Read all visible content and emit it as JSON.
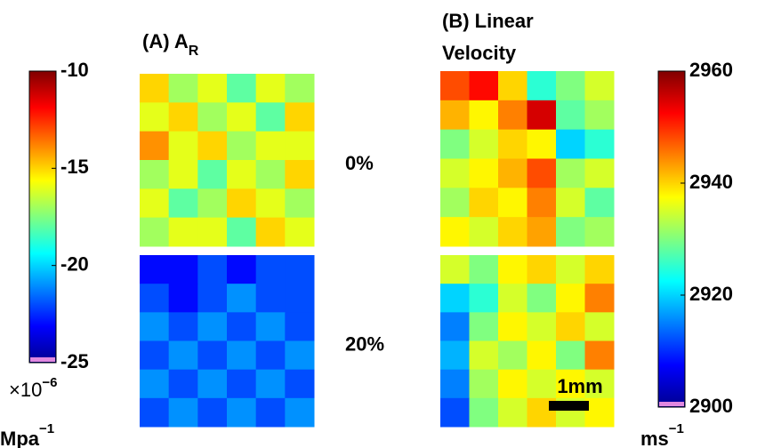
{
  "chart_data": [
    {
      "type": "heatmap",
      "title": "(A) A",
      "title_subscript": "R",
      "clim": [
        -25,
        -10
      ],
      "cticks": [
        -10,
        -15,
        -20,
        -25
      ],
      "colorbar_multiplier": "×10",
      "colorbar_exponent": "−6",
      "colorbar_unit": "Mpa",
      "colorbar_unit_exponent": "−1",
      "maps": [
        {
          "name": "0%",
          "values": [
            [
              -15,
              -17,
              -16,
              -18,
              -16,
              -17
            ],
            [
              -16,
              -15,
              -17,
              -16,
              -18,
              -15
            ],
            [
              -14,
              -16,
              -15,
              -17,
              -16,
              -16
            ],
            [
              -17,
              -16,
              -18,
              -16,
              -17,
              -15
            ],
            [
              -16,
              -18,
              -17,
              -15,
              -16,
              -17
            ],
            [
              -17,
              -16,
              -16,
              -18,
              -15,
              -16
            ]
          ]
        },
        {
          "name": "20%",
          "values": [
            [
              -23,
              -23,
              -22,
              -23,
              -22,
              -22
            ],
            [
              -22,
              -23,
              -22,
              -21,
              -22,
              -22
            ],
            [
              -21,
              -22,
              -21,
              -22,
              -21,
              -22
            ],
            [
              -22,
              -21,
              -22,
              -21,
              -22,
              -21
            ],
            [
              -21,
              -22,
              -21,
              -22,
              -21,
              -22
            ],
            [
              -22,
              -21,
              -22,
              -21,
              -22,
              -21
            ]
          ]
        }
      ]
    },
    {
      "type": "heatmap",
      "title_lines": [
        "(B) Linear",
        "Velocity"
      ],
      "clim": [
        2900,
        2960
      ],
      "cticks": [
        2960,
        2940,
        2920,
        2900
      ],
      "colorbar_unit": "ms",
      "colorbar_unit_exponent": "−1",
      "scale_bar_label": "1mm",
      "maps": [
        {
          "values": [
            [
              2948,
              2952,
              2940,
              2925,
              2930,
              2935
            ],
            [
              2942,
              2938,
              2945,
              2955,
              2928,
              2932
            ],
            [
              2930,
              2935,
              2940,
              2938,
              2920,
              2925
            ],
            [
              2935,
              2938,
              2942,
              2948,
              2932,
              2935
            ],
            [
              2932,
              2940,
              2938,
              2945,
              2935,
              2928
            ],
            [
              2938,
              2935,
              2940,
              2943,
              2930,
              2932
            ]
          ]
        },
        {
          "values": [
            [
              2935,
              2930,
              2938,
              2940,
              2935,
              2940
            ],
            [
              2920,
              2925,
              2935,
              2930,
              2938,
              2945
            ],
            [
              2915,
              2930,
              2938,
              2935,
              2940,
              2935
            ],
            [
              2918,
              2935,
              2932,
              2938,
              2930,
              2945
            ],
            [
              2915,
              2932,
              2938,
              2935,
              2938,
              2935
            ],
            [
              2912,
              2930,
              2935,
              2940,
              2935,
              2938
            ]
          ]
        }
      ]
    }
  ]
}
